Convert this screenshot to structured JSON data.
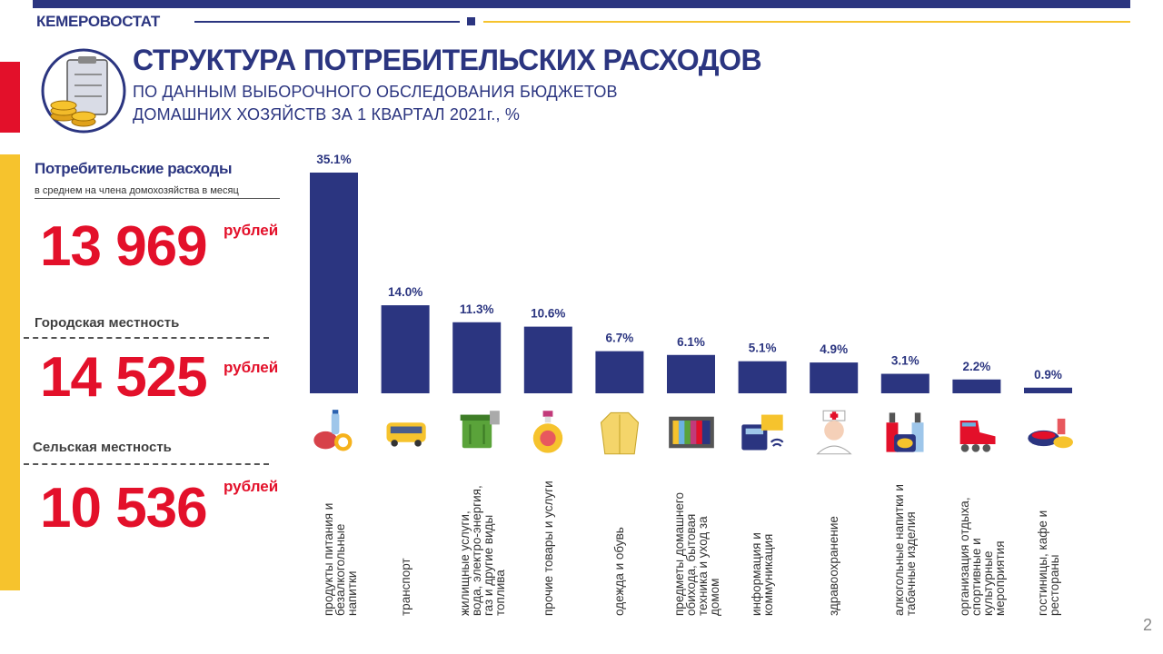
{
  "header": {
    "brand": "КЕМЕРОВОСТАТ",
    "title": "СТРУКТУРА ПОТРЕБИТЕЛЬСКИХ РАСХОДОВ",
    "subtitle_line1": "ПО ДАННЫМ  ВЫБОРОЧНОГО  ОБСЛЕДОВАНИЯ  БЮДЖЕТОВ",
    "subtitle_line2": "ДОМАШНИХ  ХОЗЯЙСТВ   ЗА 1 КВАРТАЛ  2021г., %"
  },
  "summary": {
    "heading": "Потребительские расходы",
    "note": "в среднем на члена домохозяйства  в месяц",
    "total_value": "13 969",
    "unit": "рублей",
    "urban_label": "Городская местность",
    "urban_value": "14 525",
    "rural_label": "Сельская местность",
    "rural_value": "10 536"
  },
  "colors": {
    "navy": "#2b3580",
    "red": "#e3102a",
    "yellow": "#f6c32d"
  },
  "chart_data": {
    "type": "bar",
    "categories": [
      "продукты питания и безалкогольные напитки",
      "транспорт",
      "жилищные услуги, вода, электро-энергия, газ и другие виды топлива",
      "прочие товары и услуги",
      "одежда и обувь",
      "предметы домашнего обихода, бытовая техника и уход за домом",
      "информация и коммуникация",
      "здравоохранение",
      "алкогольные напитки и табачные изделия",
      "организация отдыха, спортивные и культурные мероприятия",
      "гостиницы, кафе и рестораны"
    ],
    "values": [
      35.1,
      14.0,
      11.3,
      10.6,
      6.7,
      6.1,
      5.1,
      4.9,
      3.1,
      2.2,
      0.9
    ],
    "value_labels": [
      "35.1%",
      "14.0%",
      "11.3%",
      "10.6%",
      "6.7%",
      "6.1%",
      "5.1%",
      "4.9%",
      "3.1%",
      "2.2%",
      "0.9%"
    ],
    "icons": [
      "food-icon",
      "bus-icon",
      "trash-bin-icon",
      "perfume-bottle-icon",
      "coat-icon",
      "tv-icon",
      "phone-icon",
      "nurse-icon",
      "bottles-icon",
      "roller-skate-icon",
      "dish-icon"
    ],
    "title": "",
    "xlabel": "",
    "ylabel": "",
    "ylim": [
      0,
      35.1
    ],
    "grid": false
  },
  "page_number": "2"
}
